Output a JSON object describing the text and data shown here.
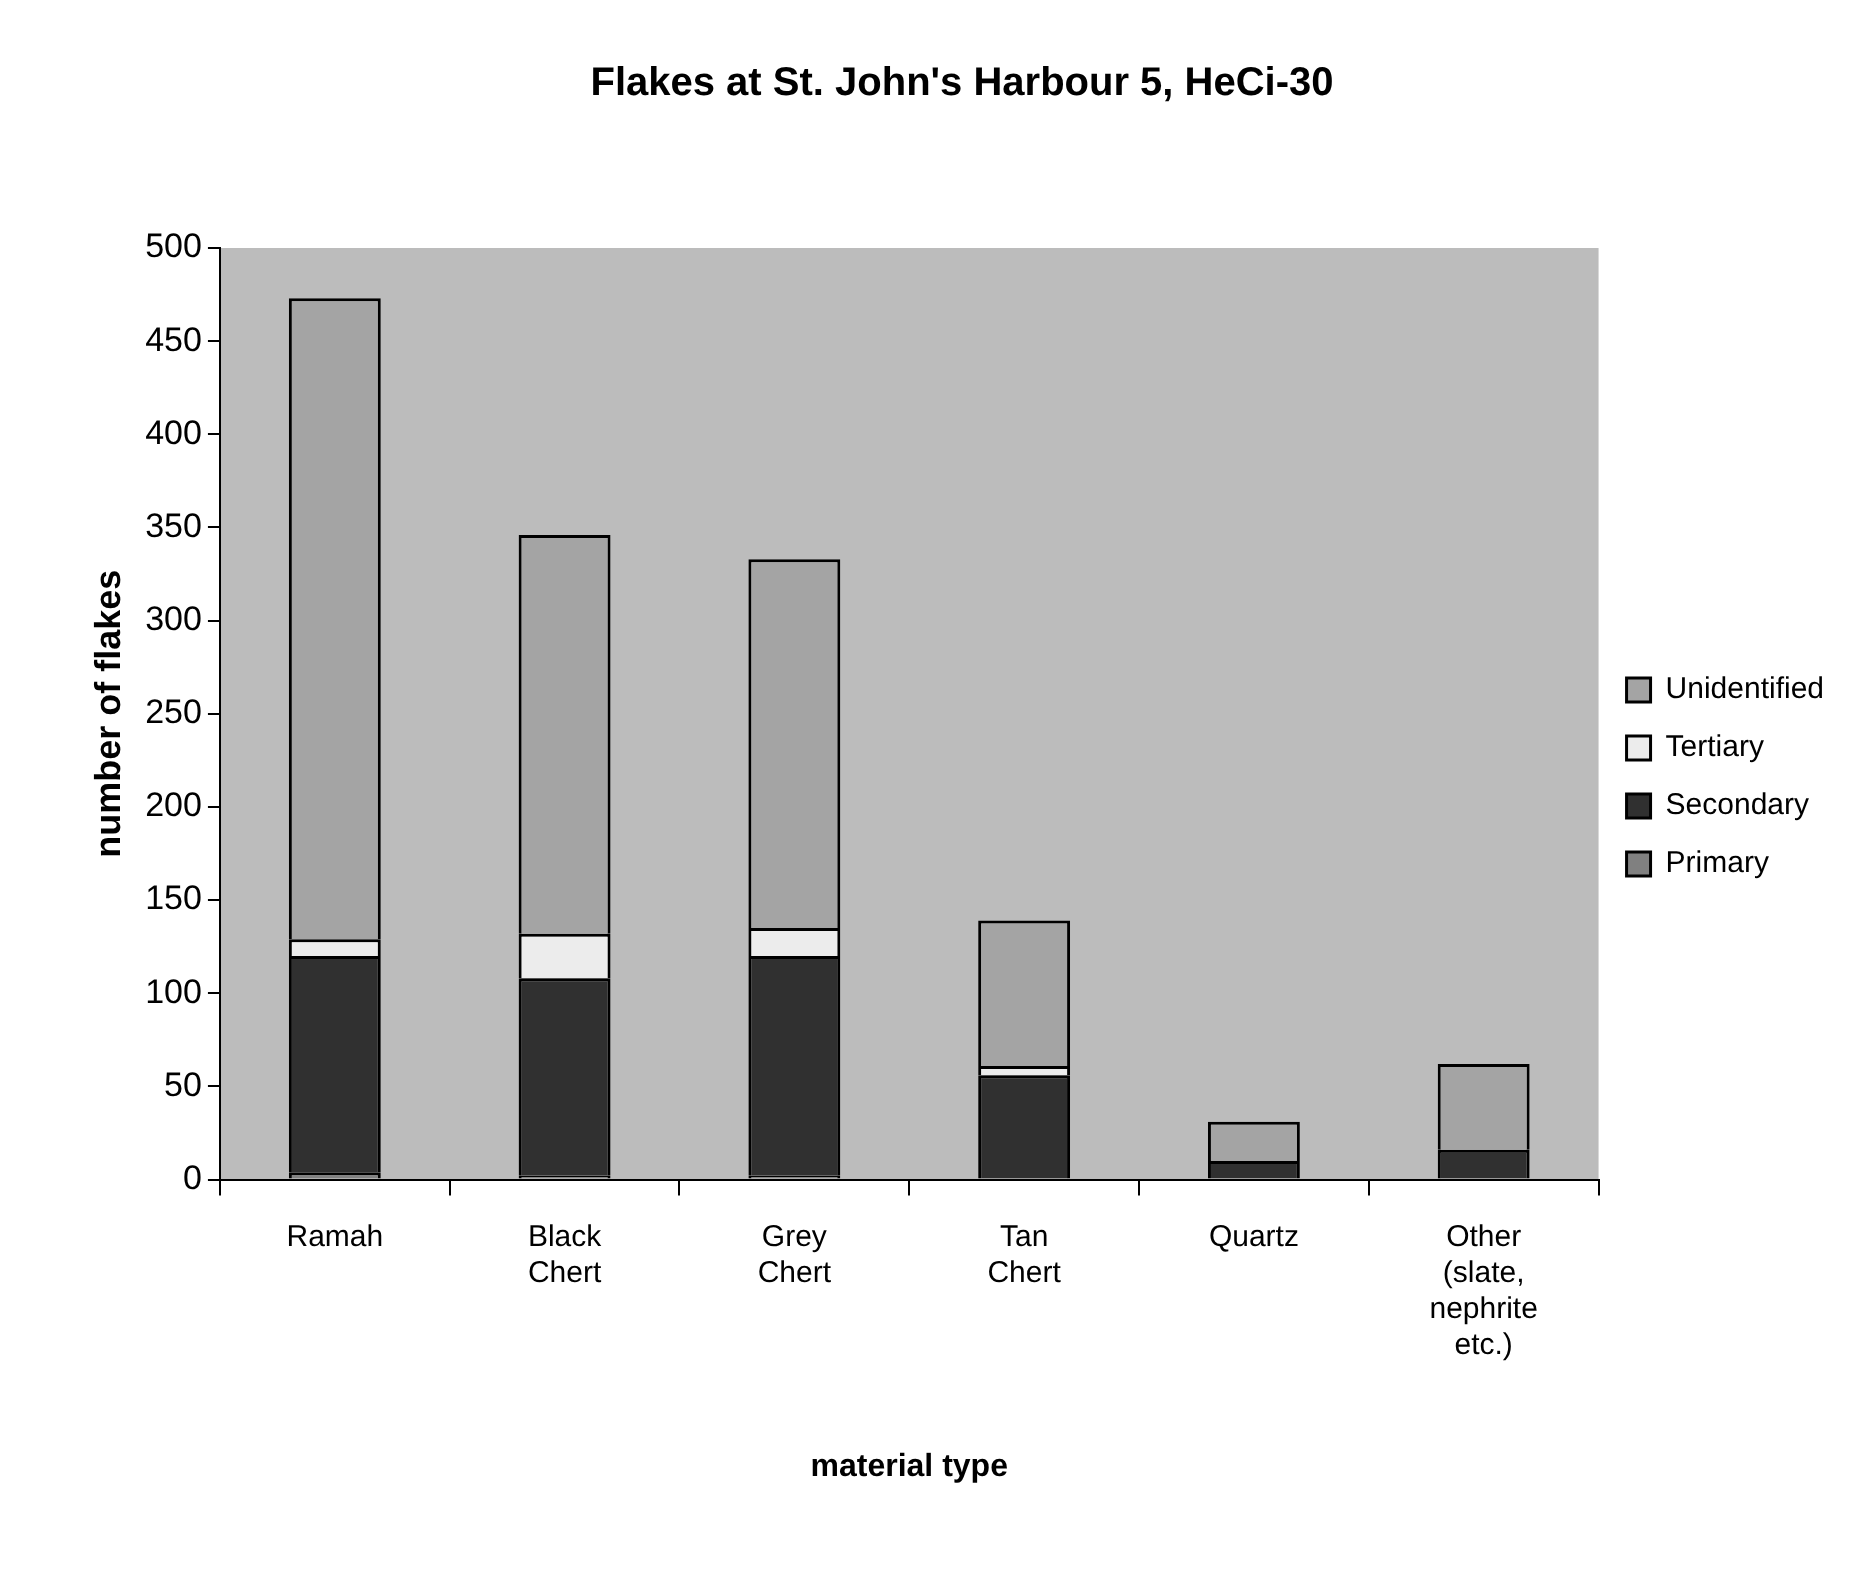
{
  "chart_data": {
    "type": "bar",
    "title": "Flakes at St. John's Harbour 5, HeCi-30",
    "xlabel": "material type",
    "ylabel": "number of flakes",
    "categories": [
      "Ramah",
      "Black Chert",
      "Grey Chert",
      "Tan Chert",
      "Quartz",
      "Other (slate, nephrite etc.)"
    ],
    "stacked": true,
    "legend": "right",
    "grid": false,
    "ylim": [
      0,
      500
    ],
    "yticks": [
      0,
      50,
      100,
      150,
      200,
      250,
      300,
      350,
      400,
      450,
      500
    ],
    "series": [
      {
        "name": "Primary",
        "color": "#808080",
        "values": [
          4,
          2,
          2,
          0,
          0,
          0
        ]
      },
      {
        "name": "Secondary",
        "color": "#303030",
        "values": [
          116,
          106,
          118,
          56,
          10,
          16
        ]
      },
      {
        "name": "Tertiary",
        "color": "#ececec",
        "values": [
          9,
          24,
          15,
          5,
          0,
          0
        ]
      },
      {
        "name": "Unidentified",
        "color": "#a4a4a4",
        "values": [
          344,
          214,
          198,
          78,
          21,
          46
        ]
      }
    ]
  }
}
